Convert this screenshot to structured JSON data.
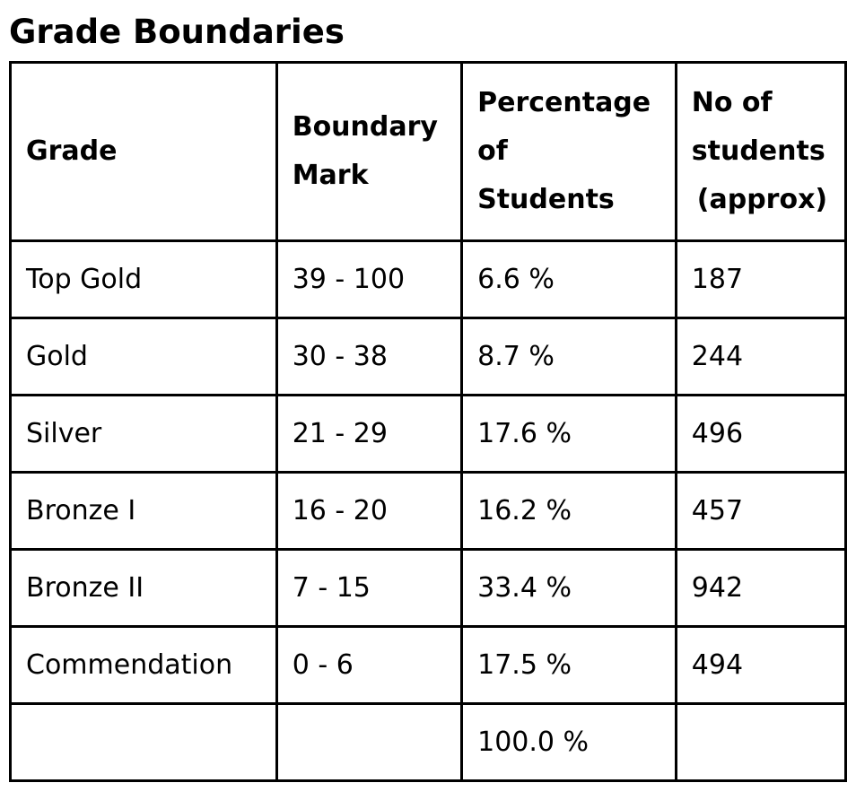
{
  "title": "Grade Boundaries",
  "table": {
    "headers": [
      [
        "Grade"
      ],
      [
        "Boundary",
        "Mark"
      ],
      [
        "Percentage",
        "of",
        "Students"
      ],
      [
        "No of",
        "students",
        "(approx)"
      ]
    ],
    "rows": [
      [
        "Top Gold",
        "39 - 100",
        "6.6 %",
        "187"
      ],
      [
        "Gold",
        "30 - 38",
        "8.7 %",
        "244"
      ],
      [
        "Silver",
        "21 - 29",
        "17.6 %",
        "496"
      ],
      [
        "Bronze I",
        "16 - 20",
        "16.2 %",
        "457"
      ],
      [
        "Bronze II",
        "7 - 15",
        "33.4 %",
        "942"
      ],
      [
        "Commendation",
        "0 - 6",
        "17.5 %",
        "494"
      ],
      [
        "",
        "",
        "100.0 %",
        ""
      ]
    ]
  }
}
